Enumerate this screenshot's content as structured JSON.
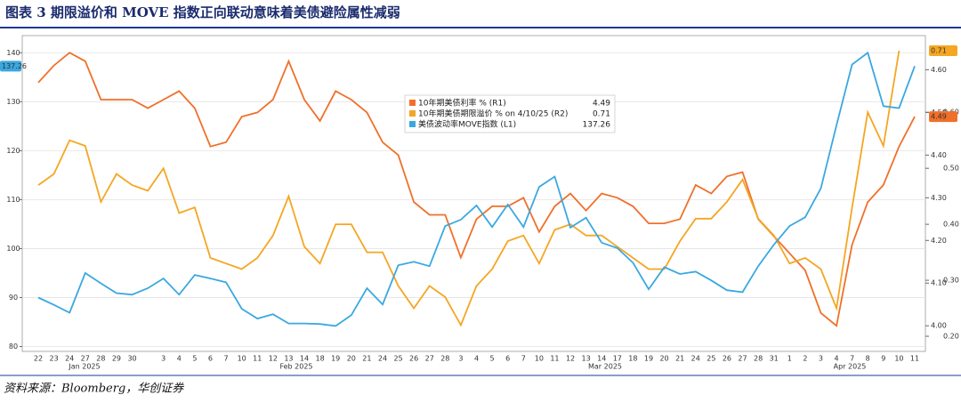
{
  "chart_data": {
    "type": "line",
    "title": "图表 3 期限溢价和 MOVE 指数正向联动意味着美债避险属性减弱",
    "source": "资料来源：Bloomberg，华创证券",
    "categories": [
      "22",
      "23",
      "24",
      "27",
      "28",
      "29",
      "30",
      null,
      "3",
      "4",
      "5",
      "6",
      "7",
      "10",
      "11",
      "12",
      "13",
      "14",
      "18",
      "19",
      "20",
      "21",
      "24",
      "25",
      "26",
      "27",
      "28",
      "3",
      "4",
      "5",
      "6",
      "7",
      "10",
      "11",
      "12",
      "13",
      "14",
      "17",
      "18",
      "19",
      "20",
      "21",
      "24",
      "25",
      "26",
      "27",
      "28",
      "31",
      "1",
      "2",
      "3",
      "4",
      "7",
      "8",
      "9",
      "10",
      "11"
    ],
    "month_labels": [
      "Jan 2025",
      "Feb 2025",
      "Mar 2025",
      "Apr 2025"
    ],
    "ylim": [
      79,
      143.5
    ],
    "yticks": [
      80,
      90,
      100,
      110,
      120,
      130,
      140
    ],
    "y2lim": [
      3.94,
      4.68
    ],
    "y2ticks": [
      {
        "value": 4,
        "label": "4.00"
      },
      {
        "value": 4.1,
        "label": "4.10"
      },
      {
        "value": 4.2,
        "label": "4.20"
      },
      {
        "value": 4.3,
        "label": "4.30"
      },
      {
        "value": 4.4,
        "label": "4.40"
      },
      {
        "value": 4.5,
        "label": "4.50"
      },
      {
        "value": 4.6,
        "label": "4.60"
      }
    ],
    "y3lim": [
      0.173,
      0.737
    ],
    "y3ticks": [
      {
        "value": 0.2,
        "label": "0.20"
      },
      {
        "value": 0.3,
        "label": "0.30"
      },
      {
        "value": 0.4,
        "label": "0.40"
      },
      {
        "value": 0.5,
        "label": "0.50"
      },
      {
        "value": 0.6,
        "label": "0.60"
      }
    ],
    "grid": true,
    "series": [
      {
        "name": "10年期美债利率 % (R1)",
        "color": "#f0702a",
        "axis": "y2",
        "end_label": "4.49",
        "values": [
          4.57,
          4.61,
          4.64,
          4.62,
          4.53,
          4.53,
          4.53,
          4.51,
          4.53,
          4.55,
          4.51,
          4.42,
          4.43,
          4.49,
          4.5,
          4.53,
          4.62,
          4.53,
          4.48,
          4.55,
          4.53,
          4.5,
          4.43,
          4.4,
          4.29,
          4.26,
          4.26,
          4.16,
          4.25,
          4.28,
          4.28,
          4.3,
          4.22,
          4.28,
          4.31,
          4.27,
          4.31,
          4.3,
          4.28,
          4.24,
          4.24,
          4.25,
          4.33,
          4.31,
          4.35,
          4.36,
          4.25,
          4.21,
          4.17,
          4.13,
          4.03,
          4.0,
          4.19,
          4.29,
          4.33,
          4.42,
          4.49
        ]
      },
      {
        "name": "10年期美债期限溢价 % on 4/10/25 (R2)",
        "color": "#f5a623",
        "axis": "y3",
        "end_label": "0.71",
        "values": [
          0.47,
          0.49,
          0.55,
          0.54,
          0.44,
          0.49,
          0.47,
          0.46,
          0.5,
          0.42,
          0.43,
          0.34,
          0.33,
          0.32,
          0.34,
          0.38,
          0.45,
          0.36,
          0.33,
          0.4,
          0.4,
          0.35,
          0.35,
          0.29,
          0.25,
          0.29,
          0.27,
          0.22,
          0.29,
          0.32,
          0.37,
          0.38,
          0.33,
          0.39,
          0.4,
          0.38,
          0.38,
          0.36,
          0.34,
          0.32,
          0.32,
          0.37,
          0.41,
          0.41,
          0.44,
          0.48,
          0.41,
          0.38,
          0.33,
          0.34,
          0.32,
          0.25,
          0.43,
          0.6,
          0.54,
          0.71,
          null
        ]
      },
      {
        "name": "美债波动率MOVE指数 (L1)",
        "color": "#3aa8e0",
        "axis": "y",
        "end_label": "137.26",
        "values": [
          90.0,
          88.5,
          86.9,
          95.0,
          92.9,
          90.9,
          90.6,
          91.9,
          93.9,
          90.6,
          94.6,
          93.9,
          93.1,
          87.7,
          85.7,
          86.6,
          84.7,
          84.7,
          84.6,
          84.2,
          86.4,
          91.9,
          88.6,
          96.6,
          97.3,
          96.4,
          104.6,
          105.9,
          108.8,
          104.4,
          109.0,
          104.4,
          112.6,
          114.7,
          104.3,
          106.3,
          101.2,
          100.1,
          97.1,
          91.7,
          96.2,
          94.8,
          95.3,
          93.5,
          91.5,
          91.1,
          96.4,
          100.8,
          104.6,
          106.4,
          112.3,
          125.2,
          137.6,
          140.0,
          129.1,
          128.7,
          137.26
        ]
      }
    ]
  }
}
